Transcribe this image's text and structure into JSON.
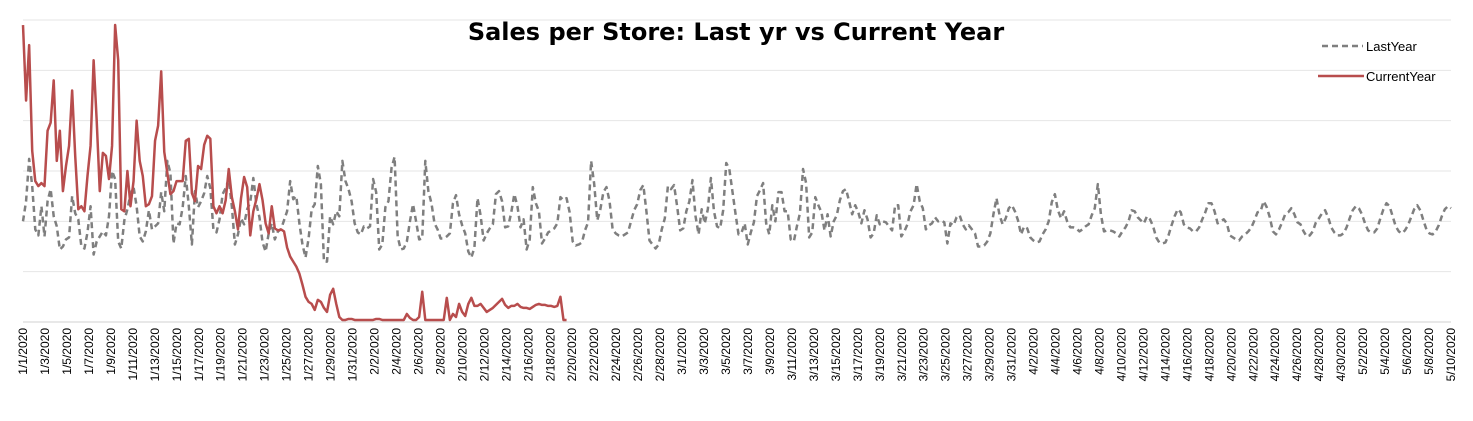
{
  "chart_data": {
    "type": "line",
    "title": "Sales per Store: Last yr vs Current Year",
    "xlabel": "",
    "ylabel": "",
    "ylim": [
      0,
      300
    ],
    "grid": true,
    "y_tick_labels_shown": false,
    "legend": {
      "position": "top-right"
    },
    "x_tick_labels": [
      "1/1/2020",
      "1/3/2020",
      "1/5/2020",
      "1/7/2020",
      "1/9/2020",
      "1/11/2020",
      "1/13/2020",
      "1/15/2020",
      "1/17/2020",
      "1/19/2020",
      "1/21/2020",
      "1/23/2020",
      "1/25/2020",
      "1/27/2020",
      "1/29/2020",
      "1/31/2020",
      "2/2/2020",
      "2/4/2020",
      "2/6/2020",
      "2/8/2020",
      "2/10/2020",
      "2/12/2020",
      "2/14/2020",
      "2/16/2020",
      "2/18/2020",
      "2/20/2020",
      "2/22/2020",
      "2/24/2020",
      "2/26/2020",
      "2/28/2020",
      "3/1/2020",
      "3/3/2020",
      "3/5/2020",
      "3/7/2020",
      "3/9/2020",
      "3/11/2020",
      "3/13/2020",
      "3/15/2020",
      "3/17/2020",
      "3/19/2020",
      "3/21/2020",
      "3/23/2020",
      "3/25/2020",
      "3/27/2020",
      "3/29/2020",
      "3/31/2020",
      "4/2/2020",
      "4/4/2020",
      "4/6/2020",
      "4/8/2020",
      "4/10/2020",
      "4/12/2020",
      "4/14/2020",
      "4/16/2020",
      "4/18/2020",
      "4/20/2020",
      "4/22/2020",
      "4/24/2020",
      "4/26/2020",
      "4/28/2020",
      "4/30/2020",
      "5/2/2020",
      "5/4/2020",
      "5/6/2020",
      "5/8/2020",
      "5/10/2020"
    ],
    "x_start": "2020-01-01",
    "series": [
      {
        "name": "LastYear",
        "style": "dashed",
        "color": "#7f7f7f",
        "values": [
          100,
          120,
          162,
          135,
          92,
          86,
          115,
          85,
          120,
          132,
          105,
          95,
          72,
          75,
          82,
          84,
          125,
          108,
          102,
          75,
          73,
          89,
          115,
          67,
          80,
          85,
          90,
          86,
          105,
          150,
          142,
          80,
          73,
          101,
          112,
          127,
          134,
          115,
          85,
          80,
          90,
          111,
          92,
          95,
          98,
          129,
          110,
          160,
          148,
          78,
          98,
          97,
          114,
          145,
          115,
          77,
          130,
          114,
          120,
          128,
          145,
          133,
          92,
          89,
          102,
          127,
          133,
          142,
          115,
          77,
          87,
          103,
          97,
          112,
          119,
          143,
          117,
          104,
          79,
          70,
          88,
          98,
          82,
          90,
          92,
          101,
          110,
          140,
          122,
          125,
          98,
          77,
          64,
          83,
          112,
          117,
          155,
          137,
          60,
          60,
          105,
          97,
          110,
          105,
          160,
          140,
          132,
          120,
          98,
          89,
          87,
          95,
          93,
          95,
          142,
          129,
          72,
          77,
          114,
          120,
          153,
          164,
          85,
          72,
          73,
          80,
          100,
          117,
          100,
          82,
          83,
          160,
          130,
          118,
          98,
          92,
          83,
          83,
          85,
          88,
          118,
          126,
          107,
          96,
          88,
          70,
          64,
          74,
          123,
          106,
          81,
          88,
          93,
          97,
          127,
          130,
          120,
          94,
          95,
          109,
          127,
          115,
          94,
          102,
          72,
          82,
          134,
          118,
          110,
          78,
          83,
          89,
          91,
          93,
          98,
          124,
          121,
          123,
          109,
          80,
          76,
          77,
          79,
          91,
          99,
          160,
          137,
          101,
          112,
          129,
          134,
          120,
          92,
          88,
          86,
          85,
          87,
          89,
          100,
          111,
          117,
          131,
          136,
          110,
          81,
          77,
          73,
          77,
          92,
          103,
          135,
          132,
          136,
          115,
          91,
          93,
          110,
          120,
          141,
          105,
          87,
          112,
          98,
          112,
          143,
          110,
          95,
          93,
          111,
          158,
          152,
          130,
          108,
          87,
          89,
          98,
          77,
          89,
          99,
          125,
          131,
          138,
          98,
          87,
          116,
          100,
          129,
          129,
          110,
          110,
          82,
          80,
          95,
          108,
          152,
          138,
          84,
          89,
          124,
          116,
          109,
          91,
          107,
          85,
          100,
          106,
          121,
          130,
          132,
          120,
          107,
          116,
          109,
          98,
          111,
          102,
          84,
          88,
          106,
          97,
          100,
          99,
          95,
          91,
          116,
          116,
          85,
          90,
          97,
          110,
          116,
          137,
          120,
          113,
          92,
          96,
          98,
          104,
          100,
          101,
          99,
          78,
          98,
          96,
          104,
          106,
          97,
          92,
          96,
          92,
          88,
          75,
          75,
          76,
          80,
          88,
          107,
          123,
          106,
          97,
          103,
          113,
          116,
          110,
          101,
          87,
          95,
          93,
          84,
          81,
          79,
          80,
          87,
          92,
          100,
          119,
          127,
          111,
          103,
          110,
          100,
          94,
          94,
          93,
          90,
          92,
          95,
          97,
          106,
          113,
          137,
          107,
          90,
          91,
          91,
          90,
          88,
          85,
          90,
          94,
          100,
          111,
          110,
          104,
          101,
          98,
          105,
          102,
          95,
          84,
          79,
          78,
          79,
          86,
          96,
          105,
          112,
          109,
          97,
          94,
          93,
          90,
          90,
          94,
          102,
          109,
          118,
          118,
          110,
          98,
          100,
          102,
          98,
          86,
          84,
          82,
          81,
          85,
          87,
          90,
          94,
          101,
          109,
          110,
          120,
          114,
          104,
          90,
          87,
          92,
          99,
          107,
          109,
          113,
          107,
          99,
          97,
          90,
          85,
          86,
          90,
          99,
          103,
          108,
          111,
          104,
          94,
          89,
          86,
          86,
          88,
          94,
          103,
          111,
          115,
          113,
          107,
          98,
          91,
          89,
          89,
          93,
          103,
          112,
          118,
          115,
          105,
          95,
          90,
          88,
          91,
          96,
          104,
          112,
          116,
          111,
          101,
          92,
          88,
          87,
          90,
          96,
          105,
          112,
          115,
          113
        ]
      },
      {
        "name": "CurrentYear",
        "style": "solid",
        "color": "#b84d4d",
        "values": [
          295,
          220,
          275,
          170,
          140,
          135,
          138,
          135,
          190,
          198,
          240,
          160,
          190,
          130,
          155,
          175,
          230,
          165,
          112,
          115,
          110,
          145,
          175,
          260,
          200,
          130,
          168,
          165,
          142,
          175,
          295,
          260,
          112,
          110,
          150,
          115,
          140,
          200,
          160,
          145,
          115,
          117,
          125,
          180,
          195,
          249,
          169,
          148,
          127,
          130,
          140,
          140,
          140,
          180,
          182,
          128,
          120,
          155,
          152,
          176,
          185,
          182,
          115,
          108,
          115,
          108,
          121,
          152,
          124,
          110,
          92,
          123,
          144,
          134,
          86,
          110,
          122,
          137,
          121,
          98,
          88,
          115,
          93,
          91,
          92,
          90,
          74,
          65,
          60,
          55,
          48,
          37,
          25,
          20,
          18,
          12,
          22,
          20,
          14,
          10,
          27,
          33,
          18,
          5,
          2,
          2,
          3,
          3,
          2,
          2,
          2,
          2,
          2,
          2,
          2,
          3,
          3,
          2,
          2,
          2,
          2,
          2,
          2,
          2,
          2,
          8,
          4,
          2,
          2,
          5,
          30,
          2,
          2,
          2,
          2,
          2,
          2,
          2,
          24,
          2,
          8,
          5,
          18,
          10,
          6,
          18,
          24,
          16,
          16,
          18,
          14,
          10,
          12,
          14,
          17,
          20,
          23,
          17,
          14,
          16,
          16,
          18,
          15,
          14,
          14,
          13,
          15,
          17,
          18,
          17,
          17,
          16,
          16,
          15,
          16,
          25,
          2,
          2
        ]
      }
    ]
  }
}
